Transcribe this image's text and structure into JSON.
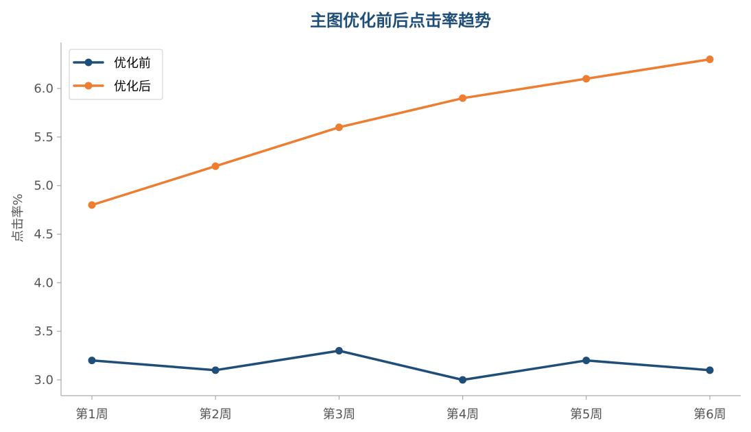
{
  "chart_data": {
    "type": "line",
    "title": "主图优化前后点击率趋势",
    "xlabel": "",
    "ylabel": "点击率%",
    "categories": [
      "第1周",
      "第2周",
      "第3周",
      "第4周",
      "第5周",
      "第6周"
    ],
    "series": [
      {
        "name": "优化前",
        "values": [
          3.2,
          3.1,
          3.3,
          3.0,
          3.2,
          3.1
        ],
        "color": "#1f4e79"
      },
      {
        "name": "优化后",
        "values": [
          4.8,
          5.2,
          5.6,
          5.9,
          6.1,
          6.3
        ],
        "color": "#ed7d31"
      }
    ],
    "yticks": [
      3.0,
      3.5,
      4.0,
      4.5,
      5.0,
      5.5,
      6.0
    ],
    "ytick_labels": [
      "3.0",
      "3.5",
      "4.0",
      "4.5",
      "5.0",
      "5.5",
      "6.0"
    ],
    "ylim": [
      2.92,
      6.45
    ],
    "grid": false,
    "legend_position": "upper-left",
    "colors": {
      "title": "#1f4e79",
      "axis": "#aaaaaa",
      "tick_text": "#555555",
      "legend_border": "#cccccc"
    }
  }
}
